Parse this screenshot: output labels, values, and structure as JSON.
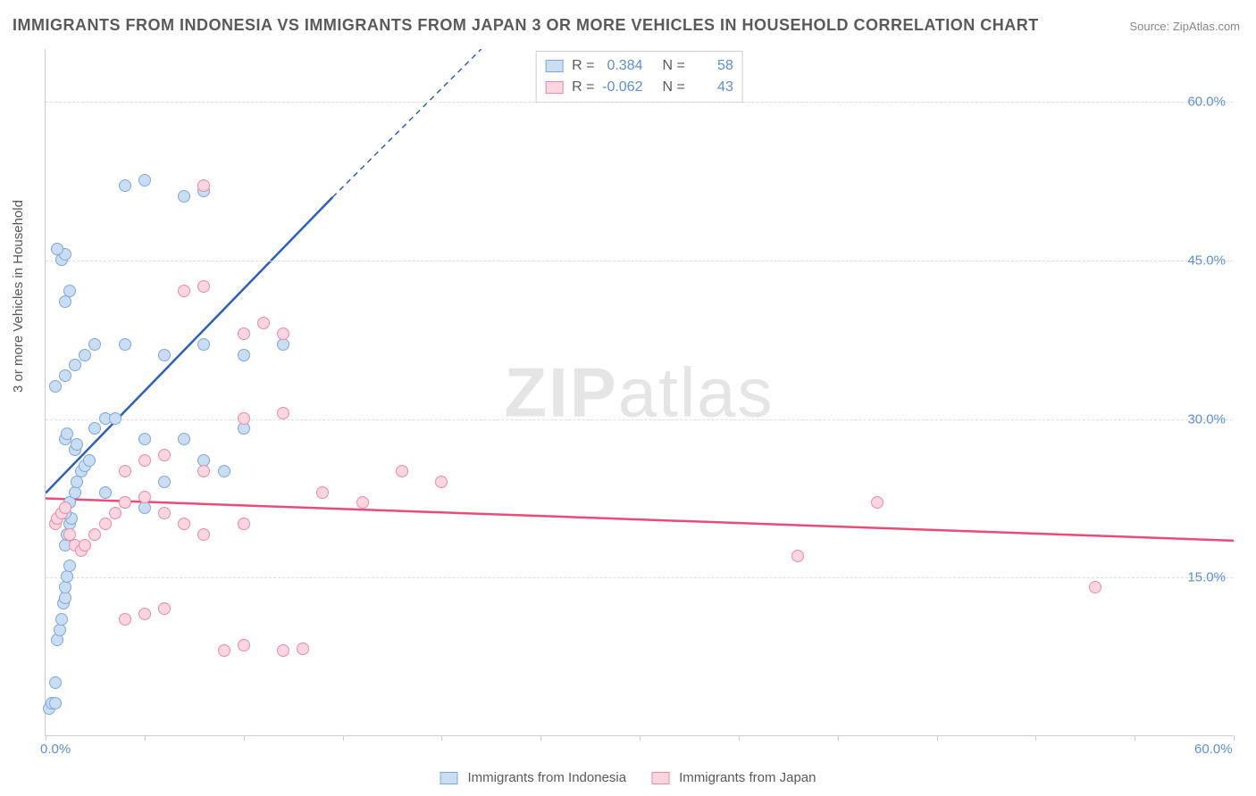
{
  "title": "IMMIGRANTS FROM INDONESIA VS IMMIGRANTS FROM JAPAN 3 OR MORE VEHICLES IN HOUSEHOLD CORRELATION CHART",
  "source": "Source: ZipAtlas.com",
  "ylabel": "3 or more Vehicles in Household",
  "watermark_a": "ZIP",
  "watermark_b": "atlas",
  "chart": {
    "type": "scatter",
    "background_color": "#ffffff",
    "grid_color": "#dddddd",
    "axis_color": "#cccccc",
    "tick_label_color": "#5b8fd6",
    "label_color": "#5a5a5a",
    "title_fontsize": 18,
    "label_fontsize": 15,
    "tick_fontsize": 15,
    "xlim": [
      0,
      60
    ],
    "ylim": [
      0,
      65
    ],
    "yticks": [
      15,
      30,
      45,
      60
    ],
    "ytick_labels": [
      "15.0%",
      "30.0%",
      "45.0%",
      "60.0%"
    ],
    "xticks_minor": [
      0,
      5,
      10,
      15,
      20,
      25,
      30,
      35,
      40,
      45,
      50,
      55,
      60
    ],
    "xtick_labels": {
      "0": "0.0%",
      "60": "60.0%"
    },
    "marker_radius": 7,
    "marker_stroke_width": 1.5,
    "series": [
      {
        "name": "Immigrants from Indonesia",
        "fill": "#c9ddf3",
        "stroke": "#7fa8d9",
        "r_value": "0.384",
        "n_value": "58",
        "regression": {
          "x1": 0,
          "y1": 23,
          "x2": 14.5,
          "y2": 51,
          "x2_dash": 22,
          "y2_dash": 65,
          "color": "#2d5fbf",
          "width": 2.5
        },
        "points": [
          [
            0.2,
            2.5
          ],
          [
            0.3,
            3
          ],
          [
            0.5,
            5
          ],
          [
            0.5,
            3
          ],
          [
            0.6,
            9
          ],
          [
            0.7,
            10
          ],
          [
            0.8,
            11
          ],
          [
            0.9,
            12.5
          ],
          [
            1,
            13
          ],
          [
            1,
            14
          ],
          [
            1.1,
            15
          ],
          [
            1.2,
            16
          ],
          [
            1,
            18
          ],
          [
            1.1,
            19
          ],
          [
            1.2,
            20
          ],
          [
            1.3,
            20.5
          ],
          [
            1,
            21
          ],
          [
            1.2,
            22
          ],
          [
            1.5,
            23
          ],
          [
            1.6,
            24
          ],
          [
            1.8,
            25
          ],
          [
            2,
            25.5
          ],
          [
            2.2,
            26
          ],
          [
            1.5,
            27
          ],
          [
            1.6,
            27.5
          ],
          [
            1,
            28
          ],
          [
            1.1,
            28.5
          ],
          [
            2.5,
            29
          ],
          [
            3,
            30
          ],
          [
            3.5,
            30
          ],
          [
            5,
            28
          ],
          [
            7,
            28
          ],
          [
            0.5,
            33
          ],
          [
            1,
            34
          ],
          [
            1.5,
            35
          ],
          [
            2,
            36
          ],
          [
            2.5,
            37
          ],
          [
            4,
            37
          ],
          [
            6,
            36
          ],
          [
            8,
            37
          ],
          [
            10,
            36
          ],
          [
            12,
            37
          ],
          [
            1,
            41
          ],
          [
            1.2,
            42
          ],
          [
            0.8,
            45
          ],
          [
            1,
            45.5
          ],
          [
            0.6,
            46
          ],
          [
            4,
            52
          ],
          [
            5,
            52.5
          ],
          [
            7,
            51
          ],
          [
            8,
            51.5
          ],
          [
            3,
            23
          ],
          [
            4,
            22
          ],
          [
            5,
            21.5
          ],
          [
            6,
            24
          ],
          [
            8,
            26
          ],
          [
            9,
            25
          ],
          [
            10,
            29
          ]
        ]
      },
      {
        "name": "Immigrants from Japan",
        "fill": "#fbd5df",
        "stroke": "#e98ba6",
        "r_value": "-0.062",
        "n_value": "43",
        "regression": {
          "x1": 0,
          "y1": 22.5,
          "x2": 60,
          "y2": 18.5,
          "color": "#e94b7a",
          "width": 2.5
        },
        "points": [
          [
            0.5,
            20
          ],
          [
            0.6,
            20.5
          ],
          [
            0.8,
            21
          ],
          [
            1,
            21.5
          ],
          [
            1.2,
            19
          ],
          [
            1.5,
            18
          ],
          [
            1.8,
            17.5
          ],
          [
            2,
            18
          ],
          [
            2.5,
            19
          ],
          [
            3,
            20
          ],
          [
            3.5,
            21
          ],
          [
            4,
            22
          ],
          [
            5,
            22.5
          ],
          [
            6,
            21
          ],
          [
            7,
            20
          ],
          [
            8,
            19
          ],
          [
            10,
            20
          ],
          [
            4,
            11
          ],
          [
            5,
            11.5
          ],
          [
            6,
            12
          ],
          [
            9,
            8
          ],
          [
            10,
            8.5
          ],
          [
            12,
            8
          ],
          [
            13,
            8.2
          ],
          [
            4,
            25
          ],
          [
            5,
            26
          ],
          [
            6,
            26.5
          ],
          [
            8,
            25
          ],
          [
            10,
            30
          ],
          [
            12,
            30.5
          ],
          [
            14,
            23
          ],
          [
            16,
            22
          ],
          [
            18,
            25
          ],
          [
            20,
            24
          ],
          [
            7,
            42
          ],
          [
            8,
            42.5
          ],
          [
            10,
            38
          ],
          [
            11,
            39
          ],
          [
            12,
            38
          ],
          [
            8,
            52
          ],
          [
            38,
            17
          ],
          [
            42,
            22
          ],
          [
            53,
            14
          ]
        ]
      }
    ]
  },
  "stats_legend": {
    "r_label": "R =",
    "n_label": "N ="
  }
}
